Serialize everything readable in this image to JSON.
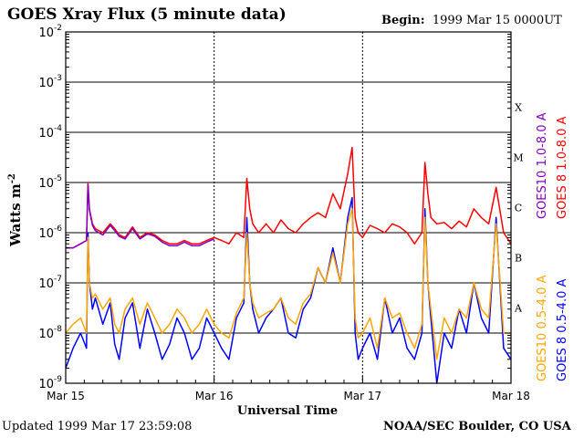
{
  "header": {
    "title": "GOES Xray Flux (5 minute data)",
    "begin_label": "Begin:",
    "begin_value": "1999 Mar 15 0000UT"
  },
  "footer": {
    "updated": "Updated 1999 Mar 17 23:59:08",
    "credit": "NOAA/SEC Boulder, CO USA"
  },
  "colors": {
    "goes8_long": "#ff0000",
    "goes10_long": "#8000c0",
    "goes8_short": "#0000ff",
    "goes10_short": "#ffa500"
  },
  "chart_data": {
    "type": "line",
    "title": "GOES Xray Flux (5 minute data)",
    "xlabel": "Universal Time",
    "ylabel": "Watts m-2",
    "yscale": "log",
    "ylim": [
      1e-09,
      0.01
    ],
    "xlim_days": [
      0,
      3
    ],
    "x_tick_labels": [
      "Mar 15",
      "Mar 16",
      "Mar 17",
      "Mar 18"
    ],
    "y_tick_labels": [
      "10^-9",
      "10^-8",
      "10^-7",
      "10^-6",
      "10^-5",
      "10^-4",
      "10^-3",
      "10^-2"
    ],
    "flare_classes": [
      {
        "label": "A",
        "level": 1e-08
      },
      {
        "label": "B",
        "level": 1e-07
      },
      {
        "label": "C",
        "level": 1e-06
      },
      {
        "label": "M",
        "level": 1e-05
      },
      {
        "label": "X",
        "level": 0.0001
      }
    ],
    "legend": [
      {
        "name": "GOES 8 1.0-8.0 A",
        "color": "#ff0000"
      },
      {
        "name": "GOES10 1.0-8.0 A",
        "color": "#8000c0"
      },
      {
        "name": "GOES 8 0.5-4.0 A",
        "color": "#0000ff"
      },
      {
        "name": "GOES10 0.5-4.0 A",
        "color": "#ffa500"
      }
    ],
    "series": [
      {
        "name": "GOES 8 1.0-8.0 A",
        "color": "#ff0000",
        "x": [
          0.0,
          0.05,
          0.1,
          0.14,
          0.15,
          0.16,
          0.18,
          0.2,
          0.25,
          0.3,
          0.33,
          0.36,
          0.4,
          0.45,
          0.5,
          0.55,
          0.6,
          0.65,
          0.7,
          0.75,
          0.8,
          0.85,
          0.9,
          0.95,
          1.0,
          1.05,
          1.1,
          1.15,
          1.2,
          1.22,
          1.24,
          1.26,
          1.3,
          1.35,
          1.4,
          1.45,
          1.5,
          1.55,
          1.6,
          1.65,
          1.7,
          1.75,
          1.8,
          1.85,
          1.9,
          1.93,
          1.95,
          1.97,
          2.0,
          2.05,
          2.1,
          2.15,
          2.2,
          2.25,
          2.3,
          2.35,
          2.4,
          2.42,
          2.44,
          2.46,
          2.5,
          2.55,
          2.6,
          2.65,
          2.7,
          2.75,
          2.8,
          2.85,
          2.9,
          2.95,
          3.0
        ],
        "values": [
          5e-07,
          5e-07,
          6e-07,
          7e-07,
          1e-05,
          3e-06,
          1.5e-06,
          1.2e-06,
          1e-06,
          1.5e-06,
          1.2e-06,
          9e-07,
          8e-07,
          1.3e-06,
          8e-07,
          1e-06,
          9e-07,
          7e-07,
          6e-07,
          6e-07,
          7e-07,
          6e-07,
          6e-07,
          7e-07,
          8e-07,
          7e-07,
          6e-07,
          1e-06,
          8e-07,
          1.2e-05,
          3e-06,
          1.5e-06,
          1e-06,
          1.5e-06,
          1e-06,
          1.8e-06,
          1.2e-06,
          1e-06,
          1.5e-06,
          2e-06,
          2.5e-06,
          2e-06,
          6e-06,
          3e-06,
          1.5e-05,
          5e-05,
          2e-06,
          1e-06,
          8e-07,
          1.4e-06,
          1.2e-06,
          1e-06,
          1.5e-06,
          1.3e-06,
          1e-06,
          6e-07,
          1e-06,
          2.5e-05,
          6e-06,
          2e-06,
          1.5e-06,
          1.6e-06,
          1.2e-06,
          1.7e-06,
          1.3e-06,
          3e-06,
          2e-06,
          1.5e-06,
          8e-06,
          1e-06,
          6e-07
        ]
      },
      {
        "name": "GOES10 1.0-8.0 A",
        "color": "#8000c0",
        "x": [
          0.0,
          0.05,
          0.1,
          0.14,
          0.15,
          0.16,
          0.18,
          0.2,
          0.25,
          0.3,
          0.33,
          0.36,
          0.4,
          0.45,
          0.5,
          0.55,
          0.6,
          0.65,
          0.7,
          0.75,
          0.8,
          0.85,
          0.9,
          0.95,
          1.0
        ],
        "values": [
          5e-07,
          5e-07,
          6e-07,
          7e-07,
          9e-06,
          2.8e-06,
          1.4e-06,
          1.1e-06,
          9e-07,
          1.4e-06,
          1.1e-06,
          8.5e-07,
          7.5e-07,
          1.2e-06,
          7.5e-07,
          9.5e-07,
          8.5e-07,
          6.5e-07,
          5.5e-07,
          5.5e-07,
          6.5e-07,
          5.5e-07,
          5.5e-07,
          6.5e-07,
          7.5e-07
        ]
      },
      {
        "name": "GOES 8 0.5-4.0 A",
        "color": "#0000ff",
        "x": [
          0.0,
          0.05,
          0.1,
          0.14,
          0.15,
          0.16,
          0.18,
          0.2,
          0.25,
          0.3,
          0.33,
          0.36,
          0.4,
          0.45,
          0.5,
          0.55,
          0.6,
          0.65,
          0.7,
          0.75,
          0.8,
          0.85,
          0.9,
          0.95,
          1.0,
          1.05,
          1.1,
          1.15,
          1.2,
          1.22,
          1.24,
          1.26,
          1.3,
          1.35,
          1.4,
          1.45,
          1.5,
          1.55,
          1.6,
          1.65,
          1.7,
          1.75,
          1.8,
          1.85,
          1.9,
          1.93,
          1.95,
          1.97,
          2.0,
          2.05,
          2.1,
          2.15,
          2.2,
          2.25,
          2.3,
          2.35,
          2.4,
          2.42,
          2.44,
          2.46,
          2.5,
          2.55,
          2.6,
          2.65,
          2.7,
          2.75,
          2.8,
          2.85,
          2.9,
          2.95,
          3.0
        ],
        "values": [
          2e-09,
          5e-09,
          1e-08,
          5e-09,
          1e-06,
          1e-07,
          3e-08,
          5e-08,
          1.5e-08,
          4e-08,
          6e-09,
          3e-09,
          2e-08,
          4e-08,
          5e-09,
          3e-08,
          1e-08,
          3e-09,
          6e-09,
          2e-08,
          1e-08,
          3e-09,
          5e-09,
          2e-08,
          1e-08,
          5e-09,
          3e-09,
          2e-08,
          4e-08,
          2e-06,
          1e-07,
          3e-08,
          1e-08,
          2e-08,
          3e-08,
          5e-08,
          1e-08,
          8e-09,
          3e-08,
          5e-08,
          2e-07,
          1e-07,
          5e-07,
          1e-07,
          2e-06,
          5e-06,
          1e-08,
          3e-09,
          5e-09,
          1e-08,
          3e-09,
          5e-08,
          1e-08,
          2e-08,
          5e-09,
          3e-09,
          1e-08,
          3e-06,
          1e-07,
          2e-08,
          1e-09,
          1e-08,
          5e-09,
          3e-08,
          1e-08,
          1e-07,
          2e-08,
          1e-08,
          2e-06,
          5e-09,
          3e-09
        ]
      },
      {
        "name": "GOES10 0.5-4.0 A",
        "color": "#ffa500",
        "x": [
          0.0,
          0.05,
          0.1,
          0.14,
          0.15,
          0.16,
          0.18,
          0.2,
          0.25,
          0.3,
          0.33,
          0.36,
          0.4,
          0.45,
          0.5,
          0.55,
          0.6,
          0.65,
          0.7,
          0.75,
          0.8,
          0.85,
          0.9,
          0.95,
          1.0,
          1.05,
          1.1,
          1.15,
          1.2,
          1.22,
          1.24,
          1.26,
          1.3,
          1.35,
          1.4,
          1.45,
          1.5,
          1.55,
          1.6,
          1.65,
          1.7,
          1.75,
          1.8,
          1.85,
          1.9,
          1.93,
          1.95,
          1.97,
          2.0,
          2.05,
          2.1,
          2.15,
          2.2,
          2.25,
          2.3,
          2.35,
          2.4,
          2.42,
          2.44,
          2.46,
          2.5,
          2.55,
          2.6,
          2.65,
          2.7,
          2.75,
          2.8,
          2.85,
          2.9,
          2.95,
          3.0
        ],
        "values": [
          1e-08,
          1.5e-08,
          2e-08,
          1e-08,
          8e-07,
          1e-07,
          5e-08,
          6e-08,
          3e-08,
          5e-08,
          1.5e-08,
          1e-08,
          3e-08,
          5e-08,
          1.5e-08,
          4e-08,
          2e-08,
          1e-08,
          1.5e-08,
          3e-08,
          2e-08,
          1e-08,
          1.5e-08,
          3e-08,
          1.5e-08,
          1e-08,
          8e-09,
          2.5e-08,
          5e-08,
          1e-06,
          1e-07,
          4e-08,
          2e-08,
          2.5e-08,
          3e-08,
          5e-08,
          2e-08,
          1.5e-08,
          4e-08,
          6e-08,
          2e-07,
          1e-07,
          4e-07,
          1e-07,
          1.5e-06,
          3e-06,
          2e-08,
          8e-09,
          1e-08,
          2e-08,
          5e-09,
          5e-08,
          2e-08,
          2.5e-08,
          1e-08,
          5e-09,
          1.5e-08,
          2e-06,
          1e-07,
          3e-08,
          3e-09,
          2e-08,
          1e-08,
          3e-08,
          2e-08,
          1e-07,
          3e-08,
          2e-08,
          1.5e-06,
          1e-08,
          1e-08
        ]
      }
    ]
  }
}
